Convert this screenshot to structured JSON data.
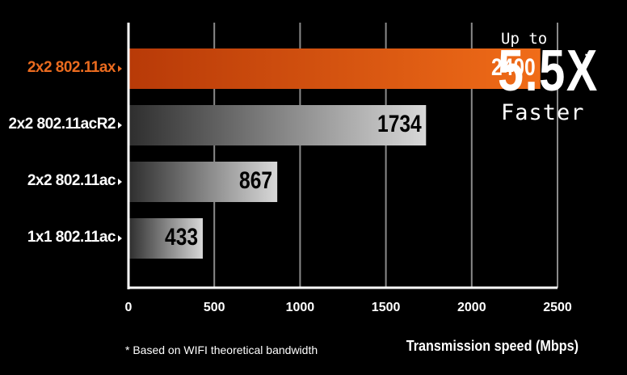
{
  "chart_data": {
    "type": "bar",
    "orientation": "horizontal",
    "categories": [
      "2x2 802.11ax",
      "2x2 802.11acR2",
      "2x2 802.11ac",
      "1x1 802.11ac"
    ],
    "values": [
      2400,
      1734,
      867,
      433
    ],
    "highlight_index": 0,
    "xlim": [
      0,
      2500
    ],
    "xticks": [
      0,
      500,
      1000,
      1500,
      2000,
      2500
    ],
    "xlabel": "Transmission speed (Mbps)",
    "grid": "vertical",
    "annotation": {
      "top": "Up to",
      "big": "5.5X",
      "star": "*",
      "bottom": "Faster"
    },
    "footnote": "* Based on WIFI theoretical bandwidth"
  },
  "colors": {
    "background": "#000000",
    "highlight_bar_start": "#b83a08",
    "highlight_bar_end": "#f06c18",
    "bar_start": "#2e2e2e",
    "bar_end": "#d8d8d8",
    "highlight_text": "#ea6b1f",
    "grid": "#8a8a8a"
  }
}
